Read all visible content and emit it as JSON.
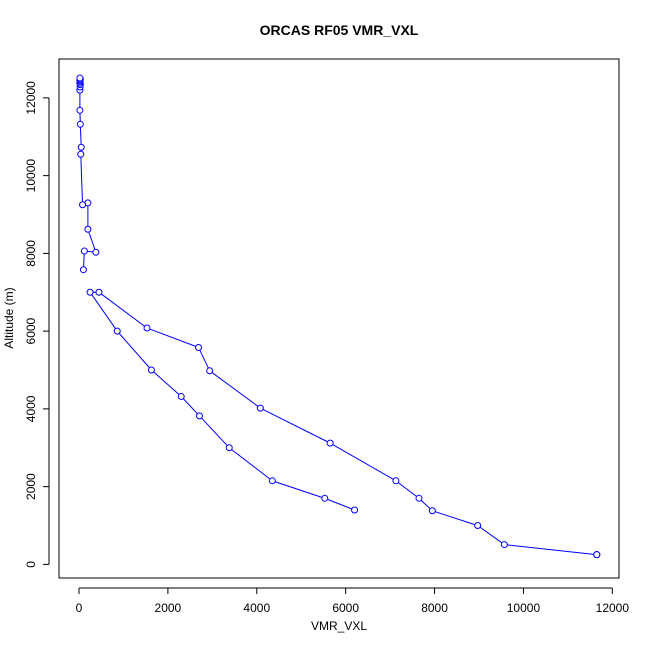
{
  "chart_data": {
    "type": "line",
    "title": "ORCAS RF05 VMR_VXL",
    "xlabel": "VMR_VXL",
    "ylabel": "Altitude (m)",
    "xlim": [
      -450,
      12150
    ],
    "ylim": [
      -350,
      13000
    ],
    "xticks": [
      0,
      2000,
      4000,
      6000,
      8000,
      10000,
      12000
    ],
    "yticks": [
      0,
      2000,
      4000,
      6000,
      8000,
      10000,
      12000
    ],
    "markers": "open-circle",
    "series": [
      {
        "color": "#0000ff",
        "points": [
          [
            6200,
            1400
          ],
          [
            5530,
            1700
          ],
          [
            4350,
            2150
          ],
          [
            3380,
            3000
          ],
          [
            2710,
            3820
          ],
          [
            2300,
            4320
          ],
          [
            1630,
            5000
          ],
          [
            860,
            6000
          ],
          [
            250,
            7000
          ],
          [
            450,
            7000
          ],
          [
            1530,
            6080
          ],
          [
            2690,
            5580
          ],
          [
            2940,
            4980
          ],
          [
            4080,
            4020
          ],
          [
            5650,
            3120
          ],
          [
            7130,
            2150
          ],
          [
            7650,
            1700
          ],
          [
            7950,
            1380
          ],
          [
            8970,
            1000
          ],
          [
            9570,
            510
          ],
          [
            11650,
            250
          ],
          [
            11650,
            250
          ],
          [
            11650,
            250
          ]
        ]
      },
      {
        "color": "#0000ff",
        "points": [
          [
            100,
            7580
          ],
          [
            120,
            8060
          ],
          [
            380,
            8030
          ],
          [
            200,
            8620
          ],
          [
            200,
            9300
          ],
          [
            80,
            9250
          ],
          [
            40,
            10550
          ],
          [
            50,
            10730
          ],
          [
            30,
            11320
          ],
          [
            20,
            11680
          ],
          [
            20,
            12200
          ],
          [
            25,
            12280
          ],
          [
            30,
            12340
          ],
          [
            20,
            12380
          ],
          [
            25,
            12420
          ],
          [
            20,
            12450
          ],
          [
            30,
            12480
          ],
          [
            20,
            12510
          ]
        ]
      }
    ]
  }
}
